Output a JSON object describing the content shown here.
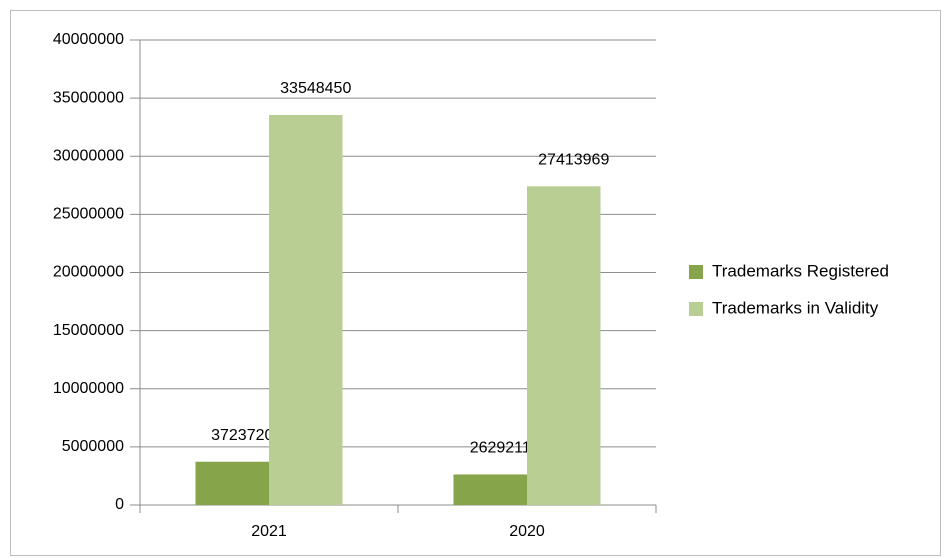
{
  "chart_data": {
    "type": "bar",
    "categories": [
      "2021",
      "2020"
    ],
    "series": [
      {
        "name": "Trademarks Registered",
        "color": "#86a44a",
        "values": [
          3723720,
          2629211
        ]
      },
      {
        "name": "Trademarks in Validity",
        "color": "#b8ce93",
        "values": [
          33548450,
          27413969
        ]
      }
    ],
    "ylim": [
      0,
      40000000
    ],
    "yticks": [
      0,
      5000000,
      10000000,
      15000000,
      20000000,
      25000000,
      30000000,
      35000000,
      40000000
    ],
    "grid": true,
    "legend": "right"
  }
}
